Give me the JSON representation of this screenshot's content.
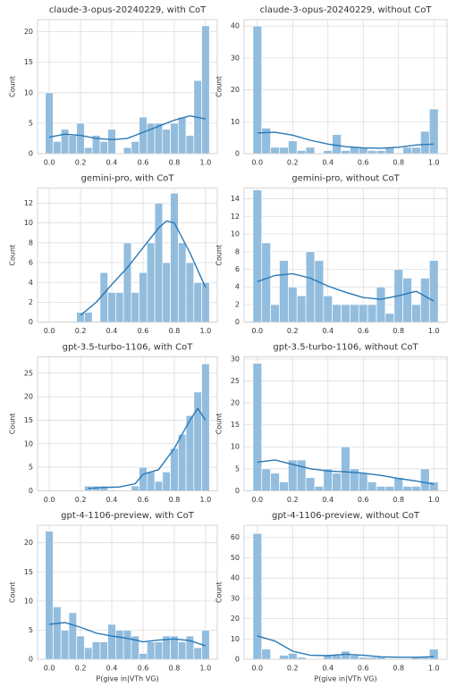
{
  "chart_data": [
    {
      "type": "histogram",
      "title": "claude-3-opus-20240229, with CoT",
      "ylabel": "Count",
      "color": "#8cb9dc",
      "line_color": "#2878b5",
      "grid": true,
      "bins": [
        -0.025,
        0.025,
        0.075,
        0.125,
        0.175,
        0.225,
        0.275,
        0.325,
        0.375,
        0.425,
        0.475,
        0.525,
        0.575,
        0.625,
        0.675,
        0.725,
        0.775,
        0.825,
        0.875,
        0.925,
        0.975,
        1.025
      ],
      "values": [
        10,
        2,
        4,
        3,
        5,
        1,
        3,
        2,
        4,
        0,
        1,
        2,
        6,
        5,
        5,
        4,
        5,
        6,
        3,
        12,
        21
      ],
      "line": {
        "x": [
          0,
          0.1,
          0.2,
          0.3,
          0.4,
          0.5,
          0.6,
          0.7,
          0.8,
          0.9,
          1.0
        ],
        "values": [
          2.7,
          3.2,
          3,
          2.5,
          2.3,
          2.5,
          3.5,
          4.5,
          5.5,
          6.2,
          5.7
        ]
      },
      "xlim": [
        -0.075,
        1.075
      ],
      "xticks": [
        {
          "value": 0,
          "label": "0.0"
        },
        0.2,
        0.4,
        0.6,
        0.8,
        {
          "value": 1,
          "label": "1.0"
        }
      ],
      "ylim": [
        0,
        22
      ],
      "yticks": [
        0,
        5,
        10,
        15,
        20
      ]
    },
    {
      "type": "histogram",
      "title": "claude-3-opus-20240229, without CoT",
      "ylabel": "Count",
      "color": "#8cb9dc",
      "line_color": "#2878b5",
      "grid": true,
      "bins": [
        -0.025,
        0.025,
        0.075,
        0.125,
        0.175,
        0.225,
        0.275,
        0.325,
        0.375,
        0.425,
        0.475,
        0.525,
        0.575,
        0.625,
        0.675,
        0.725,
        0.775,
        0.825,
        0.875,
        0.925,
        0.975,
        1.025
      ],
      "values": [
        40,
        8,
        2,
        2,
        4,
        1,
        2,
        0,
        1,
        6,
        1,
        2,
        2,
        1,
        1,
        2,
        0,
        2,
        2,
        7,
        14
      ],
      "line": {
        "x": [
          0,
          0.1,
          0.2,
          0.3,
          0.4,
          0.5,
          0.6,
          0.7,
          0.8,
          0.9,
          1.0
        ],
        "values": [
          6.5,
          6.7,
          5.8,
          4.2,
          3,
          2.2,
          1.8,
          1.7,
          2,
          2.7,
          3
        ]
      },
      "xlim": [
        -0.075,
        1.075
      ],
      "xticks": [
        {
          "value": 0,
          "label": "0.0"
        },
        0.2,
        0.4,
        0.6,
        0.8,
        {
          "value": 1,
          "label": "1.0"
        }
      ],
      "ylim": [
        0,
        42
      ],
      "yticks": [
        0,
        10,
        20,
        30,
        40
      ]
    },
    {
      "type": "histogram",
      "title": "gemini-pro, with CoT",
      "ylabel": "Count",
      "color": "#8cb9dc",
      "line_color": "#2878b5",
      "grid": true,
      "bins": [
        -0.025,
        0.025,
        0.075,
        0.125,
        0.175,
        0.225,
        0.275,
        0.325,
        0.375,
        0.425,
        0.475,
        0.525,
        0.575,
        0.625,
        0.675,
        0.725,
        0.775,
        0.825,
        0.875,
        0.925,
        0.975,
        1.025
      ],
      "values": [
        0,
        0,
        0,
        0,
        1,
        1,
        0,
        5,
        3,
        3,
        8,
        3,
        5,
        8,
        12,
        6,
        13,
        8,
        6,
        4,
        4
      ],
      "line": {
        "x": [
          0.2,
          0.3,
          0.4,
          0.5,
          0.6,
          0.7,
          0.75,
          0.8,
          0.9,
          1.0
        ],
        "values": [
          0.7,
          2,
          3.8,
          5.5,
          7.5,
          9.5,
          10.2,
          10,
          7,
          3.5
        ]
      },
      "xlim": [
        -0.075,
        1.075
      ],
      "xticks": [
        {
          "value": 0,
          "label": "0.0"
        },
        0.2,
        0.4,
        0.6,
        0.8,
        {
          "value": 1,
          "label": "1.0"
        }
      ],
      "ylim": [
        0,
        13.5
      ],
      "yticks": [
        0,
        2,
        4,
        6,
        8,
        10,
        12
      ]
    },
    {
      "type": "histogram",
      "title": "gemini-pro, without CoT",
      "ylabel": "Count",
      "color": "#8cb9dc",
      "line_color": "#2878b5",
      "grid": true,
      "bins": [
        -0.025,
        0.025,
        0.075,
        0.125,
        0.175,
        0.225,
        0.275,
        0.325,
        0.375,
        0.425,
        0.475,
        0.525,
        0.575,
        0.625,
        0.675,
        0.725,
        0.775,
        0.825,
        0.875,
        0.925,
        0.975,
        1.025
      ],
      "values": [
        15,
        9,
        2,
        7,
        4,
        3,
        8,
        7,
        3,
        2,
        2,
        2,
        2,
        2,
        4,
        1,
        6,
        5,
        2,
        5,
        7
      ],
      "line": {
        "x": [
          0,
          0.1,
          0.2,
          0.3,
          0.4,
          0.5,
          0.6,
          0.7,
          0.8,
          0.9,
          1.0
        ],
        "values": [
          4.6,
          5.3,
          5.5,
          5,
          4.1,
          3.4,
          2.8,
          2.6,
          3,
          3.5,
          2.4
        ]
      },
      "xlim": [
        -0.075,
        1.075
      ],
      "xticks": [
        {
          "value": 0,
          "label": "0.0"
        },
        0.2,
        0.4,
        0.6,
        0.8,
        {
          "value": 1,
          "label": "1.0"
        }
      ],
      "ylim": [
        0,
        15.2
      ],
      "yticks": [
        0,
        2,
        4,
        6,
        8,
        10,
        12,
        14
      ]
    },
    {
      "type": "histogram",
      "title": "gpt-3.5-turbo-1106, with CoT",
      "ylabel": "Count",
      "color": "#8cb9dc",
      "line_color": "#2878b5",
      "grid": true,
      "bins": [
        -0.025,
        0.025,
        0.075,
        0.125,
        0.175,
        0.225,
        0.275,
        0.325,
        0.375,
        0.425,
        0.475,
        0.525,
        0.575,
        0.625,
        0.675,
        0.725,
        0.775,
        0.825,
        0.875,
        0.925,
        0.975,
        1.025
      ],
      "values": [
        0,
        0,
        0,
        0,
        0,
        1,
        1,
        1,
        0,
        0,
        0,
        1,
        5,
        4,
        2,
        4,
        9,
        12,
        16,
        21,
        27
      ],
      "line": {
        "x": [
          0.25,
          0.35,
          0.45,
          0.55,
          0.6,
          0.7,
          0.8,
          0.9,
          0.95,
          1.0
        ],
        "values": [
          0.5,
          0.7,
          0.8,
          1.5,
          3.5,
          4.5,
          9,
          15,
          17.5,
          15
        ]
      },
      "xlim": [
        -0.075,
        1.075
      ],
      "xticks": [
        {
          "value": 0,
          "label": "0.0"
        },
        0.2,
        0.4,
        0.6,
        0.8,
        {
          "value": 1,
          "label": "1.0"
        }
      ],
      "ylim": [
        0,
        28.5
      ],
      "yticks": [
        0,
        5,
        10,
        15,
        20,
        25
      ]
    },
    {
      "type": "histogram",
      "title": "gpt-3.5-turbo-1106, without CoT",
      "ylabel": "Count",
      "color": "#8cb9dc",
      "line_color": "#2878b5",
      "grid": true,
      "bins": [
        -0.025,
        0.025,
        0.075,
        0.125,
        0.175,
        0.225,
        0.275,
        0.325,
        0.375,
        0.425,
        0.475,
        0.525,
        0.575,
        0.625,
        0.675,
        0.725,
        0.775,
        0.825,
        0.875,
        0.925,
        0.975,
        1.025
      ],
      "values": [
        29,
        5,
        4,
        2,
        7,
        7,
        3,
        1,
        5,
        4,
        10,
        5,
        4,
        2,
        1,
        1,
        3,
        1,
        1,
        5,
        2
      ],
      "line": {
        "x": [
          0,
          0.1,
          0.2,
          0.3,
          0.4,
          0.5,
          0.6,
          0.7,
          0.8,
          0.9,
          1.0
        ],
        "values": [
          6.5,
          7,
          6,
          5,
          4.5,
          4.3,
          4,
          3.5,
          2.8,
          2.2,
          1.5
        ]
      },
      "xlim": [
        -0.075,
        1.075
      ],
      "xticks": [
        {
          "value": 0,
          "label": "0.0"
        },
        0.2,
        0.4,
        0.6,
        0.8,
        {
          "value": 1,
          "label": "1.0"
        }
      ],
      "ylim": [
        0,
        30.5
      ],
      "yticks": [
        0,
        5,
        10,
        15,
        20,
        25,
        30
      ]
    },
    {
      "type": "histogram",
      "title": "gpt-4-1106-preview, with CoT",
      "ylabel": "Count",
      "xlabel": "P(give in|VTh VG)",
      "color": "#8cb9dc",
      "line_color": "#2878b5",
      "grid": true,
      "bins": [
        -0.025,
        0.025,
        0.075,
        0.125,
        0.175,
        0.225,
        0.275,
        0.325,
        0.375,
        0.425,
        0.475,
        0.525,
        0.575,
        0.625,
        0.675,
        0.725,
        0.775,
        0.825,
        0.875,
        0.925,
        0.975,
        1.025
      ],
      "values": [
        22,
        9,
        5,
        8,
        4,
        2,
        3,
        3,
        6,
        5,
        5,
        4,
        1,
        3,
        3,
        4,
        4,
        3,
        4,
        2,
        5
      ],
      "line": {
        "x": [
          0,
          0.1,
          0.2,
          0.3,
          0.4,
          0.5,
          0.6,
          0.7,
          0.8,
          0.9,
          1.0
        ],
        "values": [
          6,
          6.3,
          5.5,
          4.5,
          4,
          3.6,
          3,
          3.3,
          3.5,
          3.2,
          2.3
        ]
      },
      "xlim": [
        -0.075,
        1.075
      ],
      "xticks": [
        {
          "value": 0,
          "label": "0.0"
        },
        0.2,
        0.4,
        0.6,
        0.8,
        {
          "value": 1,
          "label": "1.0"
        }
      ],
      "ylim": [
        0,
        23
      ],
      "yticks": [
        0,
        5,
        10,
        15,
        20
      ]
    },
    {
      "type": "histogram",
      "title": "gpt-4-1106-preview, without CoT",
      "ylabel": "Count",
      "xlabel": "P(give in|VTh VG)",
      "color": "#8cb9dc",
      "line_color": "#2878b5",
      "grid": true,
      "bins": [
        -0.025,
        0.025,
        0.075,
        0.125,
        0.175,
        0.225,
        0.275,
        0.325,
        0.375,
        0.425,
        0.475,
        0.525,
        0.575,
        0.625,
        0.675,
        0.725,
        0.775,
        0.825,
        0.875,
        0.925,
        0.975,
        1.025
      ],
      "values": [
        62,
        5,
        0,
        2,
        3,
        1,
        0,
        0,
        2,
        2,
        4,
        2,
        1,
        1,
        1,
        0,
        0,
        0,
        1,
        1,
        5
      ],
      "line": {
        "x": [
          0,
          0.1,
          0.2,
          0.3,
          0.4,
          0.5,
          0.6,
          0.7,
          0.8,
          0.9,
          1.0
        ],
        "values": [
          11.5,
          9,
          4,
          2,
          1.8,
          2.5,
          2,
          1.2,
          1,
          1,
          1.3
        ]
      },
      "xlim": [
        -0.075,
        1.075
      ],
      "xticks": [
        {
          "value": 0,
          "label": "0.0"
        },
        0.2,
        0.4,
        0.6,
        0.8,
        {
          "value": 1,
          "label": "1.0"
        }
      ],
      "ylim": [
        0,
        66
      ],
      "yticks": [
        0,
        10,
        20,
        30,
        40,
        50,
        60
      ]
    }
  ]
}
